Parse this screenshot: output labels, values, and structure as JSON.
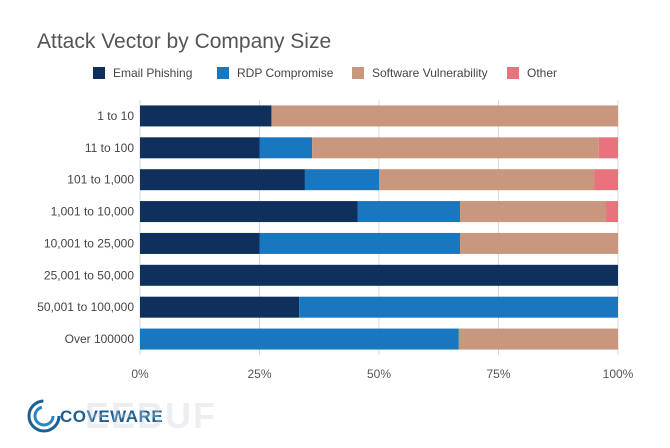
{
  "chart_data": {
    "type": "bar",
    "orientation": "horizontal",
    "stacked": true,
    "title": "Attack Vector by Company Size",
    "categories": [
      "1 to 10",
      "11 to 100",
      "101 to 1,000",
      "1,001 to 10,000",
      "10,001 to 25,000",
      "25,001 to 50,000",
      "50,001 to 100,000",
      "Over 100000"
    ],
    "series": [
      {
        "name": "Email Phishing",
        "color": "#0f2f5c",
        "values": [
          27.5,
          25,
          34.5,
          45.5,
          25,
          100,
          33.3,
          0
        ]
      },
      {
        "name": "RDP Compromise",
        "color": "#1877bf",
        "values": [
          0,
          11,
          15.5,
          21.5,
          42,
          0,
          66.7,
          66.7
        ]
      },
      {
        "name": "Software Vulnerability",
        "color": "#c9977e",
        "values": [
          72.5,
          60,
          45,
          30.5,
          33,
          0,
          0,
          33.3
        ]
      },
      {
        "name": "Other",
        "color": "#e9737d",
        "values": [
          0,
          4,
          5,
          2.5,
          0,
          0,
          0,
          0
        ]
      }
    ],
    "xlim": [
      0,
      100
    ],
    "xticks": [
      "0%",
      "25%",
      "50%",
      "75%",
      "100%"
    ],
    "grid": "vertical",
    "legend": "top"
  },
  "brand": {
    "name": "COVEWARE",
    "ghost": "EEBUF"
  }
}
